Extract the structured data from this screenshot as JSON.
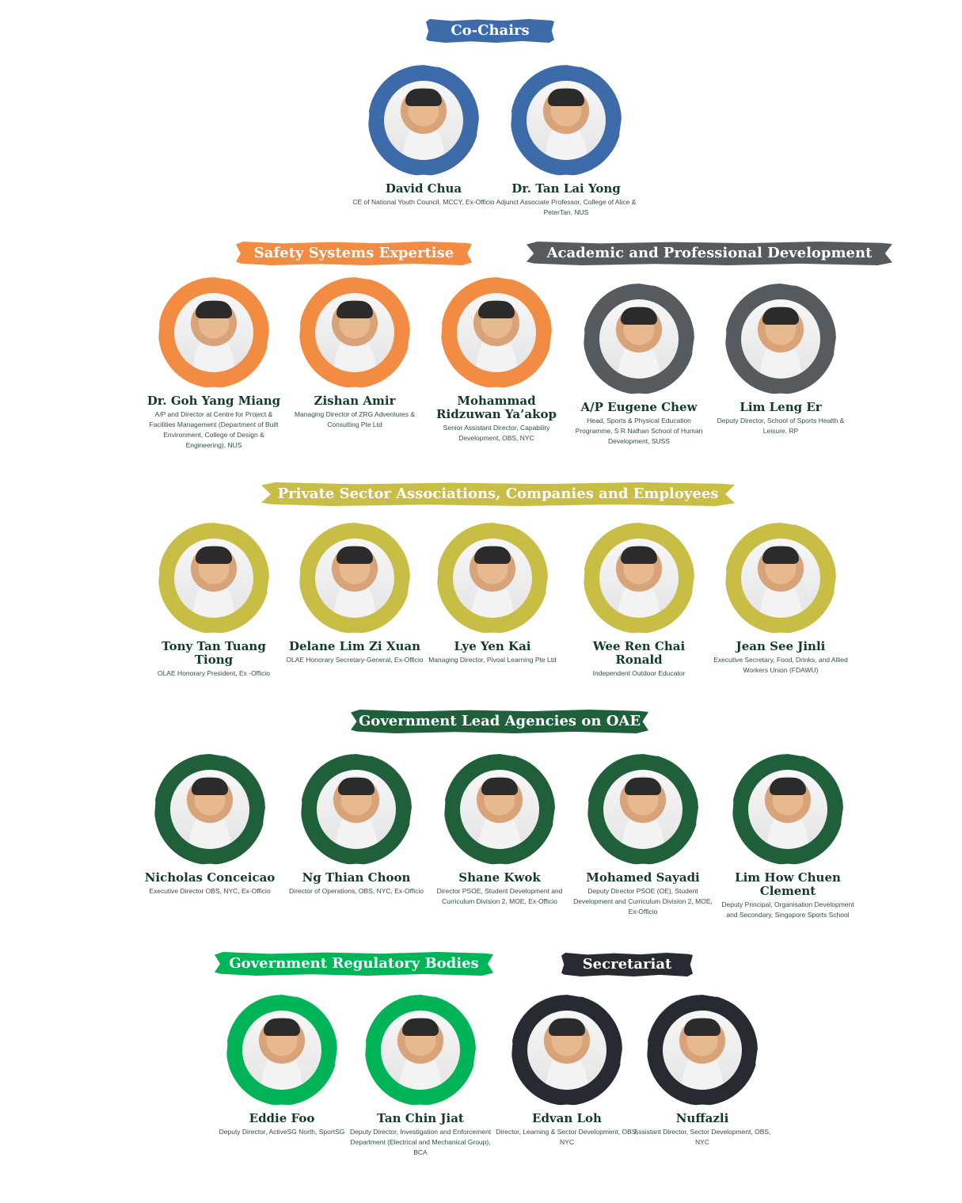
{
  "colors": {
    "co_chairs": "#3d6aa9",
    "safety": "#f38c43",
    "academic": "#555b5f",
    "private": "#c8bd45",
    "government_lead": "#1f5f3a",
    "regulatory": "#00b457",
    "secretariat": "#272a31",
    "text_dark": "#123a2d"
  },
  "sections": {
    "co_chairs": "Co-Chairs",
    "safety": "Safety Systems Expertise",
    "academic": "Academic and Professional Development",
    "private": "Private Sector Associations, Companies and Employees",
    "government_lead": "Government Lead Agencies on OAE",
    "regulatory": "Government Regulatory Bodies",
    "secretariat": "Secretariat"
  },
  "co_chairs": [
    {
      "name": "David Chua",
      "role": "CE of National Youth Council, MCCY, Ex-Officio"
    },
    {
      "name": "Dr. Tan Lai Yong",
      "role": "Adjunct Associate Professor, College of Alice & PeterTan, NUS"
    }
  ],
  "safety_academic": [
    {
      "name": "Dr. Goh Yang Miang",
      "role": "A/P and Director at Centre for Project & Facilities Management (Department of Built Environment, College of Design & Engineering), NUS"
    },
    {
      "name": "Zishan Amir",
      "role": "Managing Director of ZRG Adventures & Consulting Pte Ltd"
    },
    {
      "name": "Mohammad Ridzuwan Ya’akop",
      "role": "Senior Assistant Director, Capability Development, OBS, NYC"
    },
    {
      "name": "A/P Eugene Chew",
      "role": "Head, Sports & Physical Education Programme, S R Nathan School of Human Development, SUSS"
    },
    {
      "name": "Lim Leng Er",
      "role": "Deputy Director, School of Sports Health & Leisure, RP"
    }
  ],
  "private": [
    {
      "name": "Tony Tan Tuang Tiong",
      "role": "OLAE Honorary President, Ex -Officio"
    },
    {
      "name": "Delane Lim Zi Xuan",
      "role": "OLAE Honorary Secretary-General, Ex-Officio"
    },
    {
      "name": "Lye Yen Kai",
      "role": "Managing Director, Pivoal Learning Pte Ltd"
    },
    {
      "name": "Wee Ren Chai Ronald",
      "role": "Independent Outdoor Educator"
    },
    {
      "name": "Jean See Jinli",
      "role": "Executive Secretary, Food, Drinks, and Allied Workers Union (FDAWU)"
    }
  ],
  "government_lead": [
    {
      "name": "Nicholas Conceicao",
      "role": "Executive Director OBS, NYC, Ex-Officio"
    },
    {
      "name": "Ng Thian Choon",
      "role": "Director of Operations, OBS, NYC, Ex-Officio"
    },
    {
      "name": "Shane Kwok",
      "role": "Director PSOE, Student Development and Curriculum Division 2, MOE, Ex-Officio"
    },
    {
      "name": "Mohamed Sayadi",
      "role": "Deputy Director PSOE (OE), Student Development and Curriculum Division 2, MOE, Ex-Officio"
    },
    {
      "name": "Lim How Chuen Clement",
      "role": "Deputy Principal, Organisation Development and Secondary, Singapore Sports School"
    }
  ],
  "regulatory_secretariat": [
    {
      "name": "Eddie Foo",
      "role": "Deputy Director, ActiveSG North, SportSG"
    },
    {
      "name": "Tan Chin Jiat",
      "role": "Deputy Director, Investigation and Enforcement Department (Electrical and Mechanical Group), BCA"
    },
    {
      "name": "Edvan Loh",
      "role": "Director, Learning & Sector Development, OBS, NYC"
    },
    {
      "name": "Nuffazli",
      "role": "Assistant Director, Sector Development, OBS, NYC"
    }
  ]
}
